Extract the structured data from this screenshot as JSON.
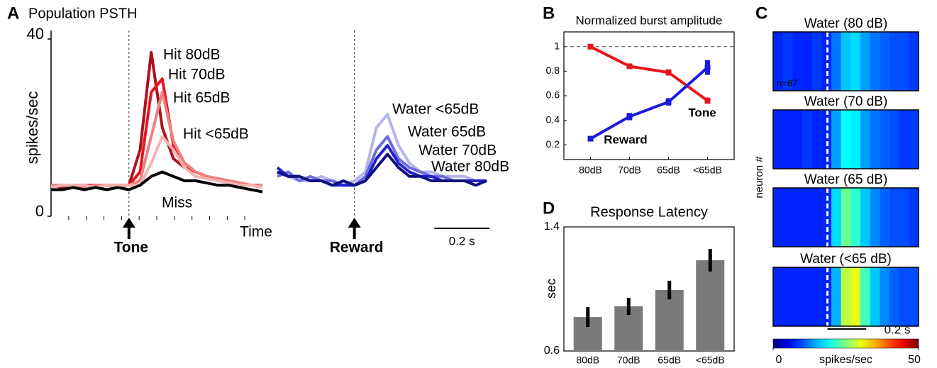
{
  "chart_data": [
    {
      "type": "line",
      "panel": "A",
      "title": "Population PSTH",
      "ylabel": "spikes/sec",
      "xlabel": "Time",
      "event_label": "Tone",
      "event_x": 0,
      "x": [
        -0.28,
        -0.24,
        -0.2,
        -0.16,
        -0.12,
        -0.08,
        -0.04,
        0,
        0.04,
        0.08,
        0.12,
        0.16,
        0.2,
        0.24,
        0.28,
        0.32,
        0.36,
        0.4,
        0.44,
        0.48
      ],
      "xlim": [
        -0.28,
        0.48
      ],
      "ylim": [
        0,
        40
      ],
      "yticks": [
        0,
        40
      ],
      "series": [
        {
          "name": "Hit 80dB",
          "color": "#b0101a",
          "values": [
            7,
            6.5,
            7,
            7,
            6.5,
            7,
            7,
            7,
            15,
            37,
            20,
            13,
            11,
            10,
            9,
            8.5,
            8,
            7.5,
            7,
            7
          ]
        },
        {
          "name": "Hit 70dB",
          "color": "#e8141c",
          "values": [
            7,
            7,
            6.5,
            7,
            7,
            7,
            7,
            7,
            10,
            28,
            31,
            16,
            12,
            10,
            9,
            8,
            8,
            7.5,
            7,
            7
          ]
        },
        {
          "name": "Hit 65dB",
          "color": "#f08080",
          "values": [
            7,
            7,
            7,
            6.5,
            7,
            7,
            6.5,
            7,
            8,
            18,
            28,
            17,
            12,
            10,
            9,
            8.5,
            8,
            7.5,
            7,
            7
          ]
        },
        {
          "name": "Hit <65dB",
          "color": "#f2b4b4",
          "values": [
            6.5,
            7,
            7,
            7,
            6.5,
            7,
            7,
            7,
            7,
            12,
            18,
            15,
            11,
            9,
            8.5,
            8,
            7.5,
            7,
            7,
            6.5
          ]
        },
        {
          "name": "Miss",
          "color": "#000000",
          "values": [
            6,
            6,
            6.5,
            6,
            6.5,
            6,
            6.5,
            6,
            7,
            9,
            10,
            9,
            8,
            8,
            7.5,
            7,
            7,
            6.5,
            6,
            5.5
          ]
        }
      ]
    },
    {
      "type": "line",
      "event_label": "Reward",
      "event_x": 0,
      "x": [
        -0.28,
        -0.24,
        -0.2,
        -0.16,
        -0.12,
        -0.08,
        -0.04,
        0,
        0.04,
        0.08,
        0.12,
        0.16,
        0.2,
        0.24,
        0.28,
        0.32,
        0.36,
        0.4,
        0.44,
        0.48
      ],
      "xlim": [
        -0.29,
        0.49
      ],
      "ylim": [
        0,
        40
      ],
      "scale_bar": {
        "value": 0.2,
        "label": "0.2 s"
      },
      "series": [
        {
          "name": "Water <65dB",
          "color": "#b4b4ee",
          "values": [
            10,
            9,
            8,
            8,
            9,
            8,
            7,
            8,
            10,
            20,
            23,
            16,
            12,
            10,
            10,
            9,
            9,
            9,
            8,
            8
          ]
        },
        {
          "name": "Water 65dB",
          "color": "#6c6ce0",
          "values": [
            9,
            10,
            8,
            9,
            8,
            8,
            7,
            7,
            9,
            15,
            18,
            13,
            11,
            10,
            9,
            9,
            8,
            8,
            8,
            8
          ]
        },
        {
          "name": "Water 70dB",
          "color": "#2020d0",
          "values": [
            11,
            9,
            9,
            8,
            8,
            7,
            7,
            7,
            8,
            13,
            16,
            12,
            10,
            9,
            9,
            8,
            8,
            8,
            8,
            8
          ]
        },
        {
          "name": "Water 80dB",
          "color": "#101080",
          "values": [
            10,
            9,
            9,
            8,
            8,
            7,
            8,
            7,
            8,
            11,
            14,
            11,
            9,
            9,
            8,
            8,
            8,
            8,
            7,
            8
          ]
        }
      ]
    },
    {
      "type": "errorbar",
      "panel": "B",
      "title": "Normalized burst amplitude",
      "categories": [
        "80dB",
        "70dB",
        "65dB",
        "<65dB"
      ],
      "ylim": [
        0.08,
        1.12
      ],
      "yticks": [
        0.2,
        0.4,
        0.6,
        0.8,
        1
      ],
      "reference_line": 1,
      "series": [
        {
          "name": "Tone",
          "color": "#e8141c",
          "values": [
            1,
            0.84,
            0.79,
            0.56
          ],
          "errors": [
            0,
            0.02,
            0.025,
            0.025
          ]
        },
        {
          "name": "Reward",
          "color": "#1a1ae0",
          "values": [
            0.25,
            0.43,
            0.55,
            0.83
          ],
          "errors": [
            0.02,
            0.03,
            0.03,
            0.06
          ]
        }
      ]
    },
    {
      "type": "bar",
      "panel": "D",
      "title": "Response Latency",
      "ylabel": "sec",
      "categories": [
        "80dB",
        "70dB",
        "65dB",
        "<65dB"
      ],
      "ylim": [
        0.6,
        1.4
      ],
      "yticks": [
        0.6,
        1.4
      ],
      "color": "#7a7a7a",
      "values": [
        0.819,
        0.888,
        0.993,
        1.185
      ],
      "errors": [
        0.064,
        0.055,
        0.06,
        0.073
      ]
    },
    {
      "type": "heatmap",
      "panel": "C",
      "ylabel": "neuron #",
      "annotation": "n=67",
      "event_x": 0,
      "bins": [
        -0.28,
        -0.23,
        -0.18,
        -0.13,
        -0.08,
        -0.03,
        0.02,
        0.07,
        0.12,
        0.17,
        0.22,
        0.27,
        0.32,
        0.37,
        0.42,
        0.47
      ],
      "scale_bar": {
        "value": 0.2,
        "label": "0.2 s"
      },
      "clim": [
        0,
        50
      ],
      "colorbar_ticks": [
        0,
        50
      ],
      "colorbar_label": "spikes/sec",
      "maps": [
        {
          "title": "Water (80 dB)",
          "values": [
            8,
            9,
            8,
            8,
            9,
            8,
            12,
            16,
            17,
            14,
            12,
            11,
            10,
            10,
            9
          ]
        },
        {
          "title": "Water (70 dB)",
          "values": [
            8,
            8,
            8,
            9,
            8,
            8,
            14,
            19,
            18,
            14,
            12,
            11,
            10,
            9,
            9
          ]
        },
        {
          "title": "Water (65 dB)",
          "values": [
            8,
            8,
            8,
            8,
            8,
            8,
            17,
            24,
            21,
            16,
            13,
            11,
            10,
            10,
            9
          ]
        },
        {
          "title": "Water (<65 dB)",
          "values": [
            8,
            8,
            8,
            8,
            8,
            8,
            15,
            28,
            30,
            22,
            16,
            13,
            11,
            10,
            10
          ]
        }
      ]
    }
  ]
}
